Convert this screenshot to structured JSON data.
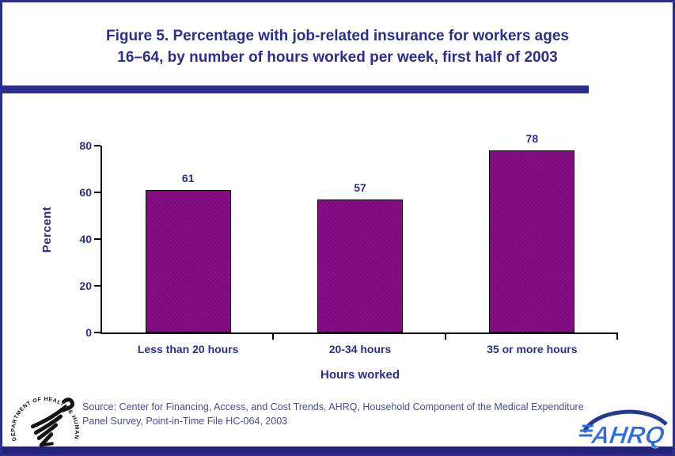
{
  "slide": {
    "title_lines": [
      "Figure 5. Percentage with job-related insurance for workers ages",
      "16–64, by number of hours worked per week, first half of 2003"
    ]
  },
  "chart_data": {
    "type": "bar",
    "title": "Figure 5. Percentage with job-related insurance for workers ages 16–64, by number of hours worked per week, first half of 2003",
    "categories": [
      "Less than 20 hours",
      "20-34 hours",
      "35 or more hours"
    ],
    "values": [
      61,
      57,
      78
    ],
    "xlabel": "Hours worked",
    "ylabel": "Percent",
    "ylim": [
      0,
      80
    ],
    "yticks": [
      0,
      20,
      40,
      60,
      80
    ],
    "grid": false,
    "legend_position": "none",
    "bar_color": "#8A0E8A",
    "axis_text_color": "#2B2E8C"
  },
  "source_note": "Source: Center for Financing, Access, and Cost Trends, AHRQ, Household Component of the Medical Expenditure Panel Survey, Point-in-Time File HC-064, 2003",
  "footer": {
    "hhs_seal_ring_text": "DEPARTMENT OF HEALTH & HUMAN SERVICES • USA",
    "ahrq_logo_text": "AHRQ"
  },
  "colors": {
    "accent_navy": "#2B2E8C",
    "bar_purple": "#8A0E8A",
    "source_text": "#4A4A99",
    "footer_band": "#232379",
    "ahrq_blue": "#2E6BDF"
  }
}
